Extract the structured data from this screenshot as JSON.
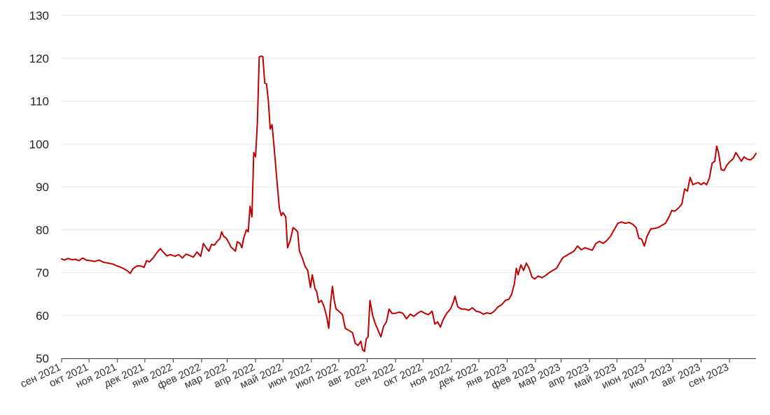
{
  "chart_data": {
    "type": "line",
    "title": "",
    "xlabel": "",
    "ylabel": "",
    "ylim": [
      50,
      130
    ],
    "yticks": [
      50,
      60,
      70,
      80,
      90,
      100,
      110,
      120,
      130
    ],
    "grid": true,
    "colors": {
      "line": "#c00000",
      "grid": "#e6e6e6",
      "axis": "#333333"
    },
    "x_ticks": [
      {
        "label": "сен 2021",
        "date": "2021-09-01"
      },
      {
        "label": "окт 2021",
        "date": "2021-10-01"
      },
      {
        "label": "ноя 2021",
        "date": "2021-11-01"
      },
      {
        "label": "дек 2021",
        "date": "2021-12-01"
      },
      {
        "label": "янв 2022",
        "date": "2022-01-01"
      },
      {
        "label": "фев 2022",
        "date": "2022-02-01"
      },
      {
        "label": "мар 2022",
        "date": "2022-03-01"
      },
      {
        "label": "апр 2022",
        "date": "2022-04-01"
      },
      {
        "label": "май 2022",
        "date": "2022-05-01"
      },
      {
        "label": "июн 2022",
        "date": "2022-06-01"
      },
      {
        "label": "июл 2022",
        "date": "2022-07-01"
      },
      {
        "label": "авг 2022",
        "date": "2022-08-01"
      },
      {
        "label": "сен 2022",
        "date": "2022-09-01"
      },
      {
        "label": "окт 2022",
        "date": "2022-10-01"
      },
      {
        "label": "ноя 2022",
        "date": "2022-11-01"
      },
      {
        "label": "дек 2022",
        "date": "2022-12-01"
      },
      {
        "label": "янв 2023",
        "date": "2023-01-01"
      },
      {
        "label": "фев 2023",
        "date": "2023-02-01"
      },
      {
        "label": "мар 2023",
        "date": "2023-03-01"
      },
      {
        "label": "апр 2023",
        "date": "2023-04-01"
      },
      {
        "label": "май 2023",
        "date": "2023-05-01"
      },
      {
        "label": "июн 2023",
        "date": "2023-06-01"
      },
      {
        "label": "июл 2023",
        "date": "2023-07-01"
      },
      {
        "label": "авг 2023",
        "date": "2023-08-01"
      },
      {
        "label": "сен 2023",
        "date": "2023-09-01"
      }
    ],
    "x_range": [
      "2021-09-01",
      "2023-09-30"
    ],
    "series": [
      {
        "points": [
          [
            "2021-09-01",
            73.2
          ],
          [
            "2021-09-04",
            72.9
          ],
          [
            "2021-09-08",
            73.3
          ],
          [
            "2021-09-12",
            73.0
          ],
          [
            "2021-09-16",
            73.1
          ],
          [
            "2021-09-20",
            72.8
          ],
          [
            "2021-09-24",
            73.4
          ],
          [
            "2021-09-28",
            72.9
          ],
          [
            "2021-10-02",
            72.8
          ],
          [
            "2021-10-07",
            72.6
          ],
          [
            "2021-10-12",
            72.9
          ],
          [
            "2021-10-17",
            72.4
          ],
          [
            "2021-10-22",
            72.2
          ],
          [
            "2021-10-27",
            72.0
          ],
          [
            "2021-10-31",
            71.6
          ],
          [
            "2021-11-04",
            71.3
          ],
          [
            "2021-11-08",
            70.9
          ],
          [
            "2021-11-12",
            70.4
          ],
          [
            "2021-11-15",
            69.8
          ],
          [
            "2021-11-18",
            70.9
          ],
          [
            "2021-11-22",
            71.5
          ],
          [
            "2021-11-26",
            71.6
          ],
          [
            "2021-11-30",
            71.2
          ],
          [
            "2021-12-03",
            72.8
          ],
          [
            "2021-12-06",
            72.5
          ],
          [
            "2021-12-10",
            73.4
          ],
          [
            "2021-12-14",
            74.6
          ],
          [
            "2021-12-18",
            75.6
          ],
          [
            "2021-12-21",
            74.8
          ],
          [
            "2021-12-25",
            73.9
          ],
          [
            "2021-12-29",
            74.2
          ],
          [
            "2022-01-03",
            73.8
          ],
          [
            "2022-01-07",
            74.2
          ],
          [
            "2022-01-11",
            73.4
          ],
          [
            "2022-01-15",
            74.3
          ],
          [
            "2022-01-19",
            74.0
          ],
          [
            "2022-01-23",
            73.6
          ],
          [
            "2022-01-27",
            74.8
          ],
          [
            "2022-01-31",
            73.8
          ],
          [
            "2022-02-03",
            76.8
          ],
          [
            "2022-02-06",
            75.8
          ],
          [
            "2022-02-09",
            75.0
          ],
          [
            "2022-02-12",
            76.6
          ],
          [
            "2022-02-15",
            76.4
          ],
          [
            "2022-02-18",
            77.3
          ],
          [
            "2022-02-21",
            77.9
          ],
          [
            "2022-02-23",
            79.5
          ],
          [
            "2022-02-25",
            78.5
          ],
          [
            "2022-02-28",
            78.0
          ],
          [
            "2022-03-02",
            77.3
          ],
          [
            "2022-03-05",
            76.0
          ],
          [
            "2022-03-08",
            75.4
          ],
          [
            "2022-03-10",
            75.0
          ],
          [
            "2022-03-12",
            77.2
          ],
          [
            "2022-03-15",
            76.8
          ],
          [
            "2022-03-17",
            75.8
          ],
          [
            "2022-03-19",
            78.0
          ],
          [
            "2022-03-22",
            80.0
          ],
          [
            "2022-03-24",
            79.5
          ],
          [
            "2022-03-26",
            85.5
          ],
          [
            "2022-03-28",
            83.0
          ],
          [
            "2022-03-30",
            98.0
          ],
          [
            "2022-04-01",
            97.0
          ],
          [
            "2022-04-03",
            105.0
          ],
          [
            "2022-04-05",
            120.3
          ],
          [
            "2022-04-07",
            120.5
          ],
          [
            "2022-04-09",
            120.4
          ],
          [
            "2022-04-11",
            114.2
          ],
          [
            "2022-04-13",
            114.0
          ],
          [
            "2022-04-15",
            110.0
          ],
          [
            "2022-04-17",
            103.5
          ],
          [
            "2022-04-19",
            104.5
          ],
          [
            "2022-04-21",
            100.0
          ],
          [
            "2022-04-23",
            95.0
          ],
          [
            "2022-04-25",
            90.0
          ],
          [
            "2022-04-27",
            85.0
          ],
          [
            "2022-04-29",
            83.3
          ],
          [
            "2022-05-01",
            84.0
          ],
          [
            "2022-05-04",
            83.0
          ],
          [
            "2022-05-06",
            75.8
          ],
          [
            "2022-05-09",
            77.5
          ],
          [
            "2022-05-12",
            80.5
          ],
          [
            "2022-05-15",
            80.0
          ],
          [
            "2022-05-17",
            79.5
          ],
          [
            "2022-05-19",
            75.0
          ],
          [
            "2022-05-22",
            73.5
          ],
          [
            "2022-05-25",
            71.5
          ],
          [
            "2022-05-28",
            70.5
          ],
          [
            "2022-05-31",
            66.5
          ],
          [
            "2022-06-02",
            69.5
          ],
          [
            "2022-06-05",
            66.3
          ],
          [
            "2022-06-07",
            65.5
          ],
          [
            "2022-06-09",
            63.0
          ],
          [
            "2022-06-12",
            63.5
          ],
          [
            "2022-06-15",
            62.0
          ],
          [
            "2022-06-18",
            59.5
          ],
          [
            "2022-06-20",
            57.0
          ],
          [
            "2022-06-22",
            63.0
          ],
          [
            "2022-06-24",
            66.8
          ],
          [
            "2022-06-26",
            63.5
          ],
          [
            "2022-06-28",
            61.5
          ],
          [
            "2022-07-01",
            61.0
          ],
          [
            "2022-07-05",
            60.2
          ],
          [
            "2022-07-08",
            57.0
          ],
          [
            "2022-07-12",
            56.5
          ],
          [
            "2022-07-16",
            56.0
          ],
          [
            "2022-07-19",
            53.5
          ],
          [
            "2022-07-22",
            53.0
          ],
          [
            "2022-07-25",
            54.0
          ],
          [
            "2022-07-27",
            52.0
          ],
          [
            "2022-07-29",
            51.6
          ],
          [
            "2022-07-31",
            54.5
          ],
          [
            "2022-08-02",
            55.0
          ],
          [
            "2022-08-04",
            63.5
          ],
          [
            "2022-08-07",
            60.0
          ],
          [
            "2022-08-10",
            58.0
          ],
          [
            "2022-08-13",
            56.5
          ],
          [
            "2022-08-16",
            55.0
          ],
          [
            "2022-08-19",
            57.5
          ],
          [
            "2022-08-22",
            58.5
          ],
          [
            "2022-08-25",
            61.5
          ],
          [
            "2022-08-28",
            60.5
          ],
          [
            "2022-09-01",
            60.5
          ],
          [
            "2022-09-05",
            60.8
          ],
          [
            "2022-09-09",
            60.5
          ],
          [
            "2022-09-13",
            59.2
          ],
          [
            "2022-09-17",
            60.3
          ],
          [
            "2022-09-21",
            59.8
          ],
          [
            "2022-09-25",
            60.5
          ],
          [
            "2022-09-29",
            61.0
          ],
          [
            "2022-10-03",
            60.5
          ],
          [
            "2022-10-07",
            60.2
          ],
          [
            "2022-10-11",
            61.0
          ],
          [
            "2022-10-14",
            58.0
          ],
          [
            "2022-10-17",
            58.5
          ],
          [
            "2022-10-20",
            57.3
          ],
          [
            "2022-10-23",
            59.0
          ],
          [
            "2022-10-27",
            60.5
          ],
          [
            "2022-10-31",
            61.5
          ],
          [
            "2022-11-03",
            63.0
          ],
          [
            "2022-11-05",
            64.5
          ],
          [
            "2022-11-08",
            62.0
          ],
          [
            "2022-11-12",
            61.5
          ],
          [
            "2022-11-16",
            61.5
          ],
          [
            "2022-11-20",
            61.2
          ],
          [
            "2022-11-24",
            61.8
          ],
          [
            "2022-11-28",
            61.0
          ],
          [
            "2022-12-02",
            60.8
          ],
          [
            "2022-12-06",
            60.3
          ],
          [
            "2022-12-10",
            60.6
          ],
          [
            "2022-12-14",
            60.4
          ],
          [
            "2022-12-18",
            61.0
          ],
          [
            "2022-12-22",
            62.0
          ],
          [
            "2022-12-26",
            62.5
          ],
          [
            "2022-12-30",
            63.5
          ],
          [
            "2023-01-03",
            63.8
          ],
          [
            "2023-01-06",
            65.0
          ],
          [
            "2023-01-09",
            67.5
          ],
          [
            "2023-01-11",
            71.0
          ],
          [
            "2023-01-13",
            69.5
          ],
          [
            "2023-01-16",
            71.8
          ],
          [
            "2023-01-19",
            70.5
          ],
          [
            "2023-01-22",
            72.2
          ],
          [
            "2023-01-25",
            71.0
          ],
          [
            "2023-01-28",
            69.0
          ],
          [
            "2023-01-31",
            68.5
          ],
          [
            "2023-02-04",
            69.2
          ],
          [
            "2023-02-08",
            68.8
          ],
          [
            "2023-02-12",
            69.3
          ],
          [
            "2023-02-16",
            70.0
          ],
          [
            "2023-02-20",
            70.5
          ],
          [
            "2023-02-24",
            71.0
          ],
          [
            "2023-02-28",
            72.5
          ],
          [
            "2023-03-03",
            73.5
          ],
          [
            "2023-03-07",
            74.0
          ],
          [
            "2023-03-11",
            74.5
          ],
          [
            "2023-03-15",
            75.0
          ],
          [
            "2023-03-19",
            76.2
          ],
          [
            "2023-03-23",
            75.3
          ],
          [
            "2023-03-27",
            75.8
          ],
          [
            "2023-03-31",
            75.5
          ],
          [
            "2023-04-04",
            75.2
          ],
          [
            "2023-04-08",
            76.8
          ],
          [
            "2023-04-12",
            77.3
          ],
          [
            "2023-04-16",
            76.8
          ],
          [
            "2023-04-20",
            77.5
          ],
          [
            "2023-04-24",
            78.5
          ],
          [
            "2023-04-28",
            80.0
          ],
          [
            "2023-05-02",
            81.5
          ],
          [
            "2023-05-06",
            81.8
          ],
          [
            "2023-05-10",
            81.5
          ],
          [
            "2023-05-14",
            81.7
          ],
          [
            "2023-05-18",
            81.3
          ],
          [
            "2023-05-22",
            80.5
          ],
          [
            "2023-05-25",
            78.0
          ],
          [
            "2023-05-28",
            77.8
          ],
          [
            "2023-05-31",
            76.2
          ],
          [
            "2023-06-03",
            78.5
          ],
          [
            "2023-06-07",
            80.2
          ],
          [
            "2023-06-11",
            80.3
          ],
          [
            "2023-06-15",
            80.5
          ],
          [
            "2023-06-19",
            81.0
          ],
          [
            "2023-06-23",
            81.5
          ],
          [
            "2023-06-27",
            83.0
          ],
          [
            "2023-06-30",
            84.5
          ],
          [
            "2023-07-03",
            84.3
          ],
          [
            "2023-07-07",
            85.0
          ],
          [
            "2023-07-11",
            86.0
          ],
          [
            "2023-07-14",
            89.5
          ],
          [
            "2023-07-17",
            89.0
          ],
          [
            "2023-07-20",
            92.2
          ],
          [
            "2023-07-23",
            90.5
          ],
          [
            "2023-07-26",
            90.8
          ],
          [
            "2023-07-29",
            91.0
          ],
          [
            "2023-08-01",
            90.5
          ],
          [
            "2023-08-04",
            91.0
          ],
          [
            "2023-08-07",
            90.5
          ],
          [
            "2023-08-10",
            92.0
          ],
          [
            "2023-08-13",
            95.5
          ],
          [
            "2023-08-16",
            96.0
          ],
          [
            "2023-08-18",
            99.5
          ],
          [
            "2023-08-20",
            98.0
          ],
          [
            "2023-08-23",
            94.0
          ],
          [
            "2023-08-26",
            93.8
          ],
          [
            "2023-08-29",
            95.0
          ],
          [
            "2023-09-01",
            95.8
          ],
          [
            "2023-09-05",
            96.5
          ],
          [
            "2023-09-08",
            98.0
          ],
          [
            "2023-09-11",
            97.0
          ],
          [
            "2023-09-14",
            96.0
          ],
          [
            "2023-09-17",
            97.0
          ],
          [
            "2023-09-20",
            96.5
          ],
          [
            "2023-09-24",
            96.3
          ],
          [
            "2023-09-27",
            96.8
          ],
          [
            "2023-09-30",
            97.8
          ]
        ]
      }
    ]
  }
}
